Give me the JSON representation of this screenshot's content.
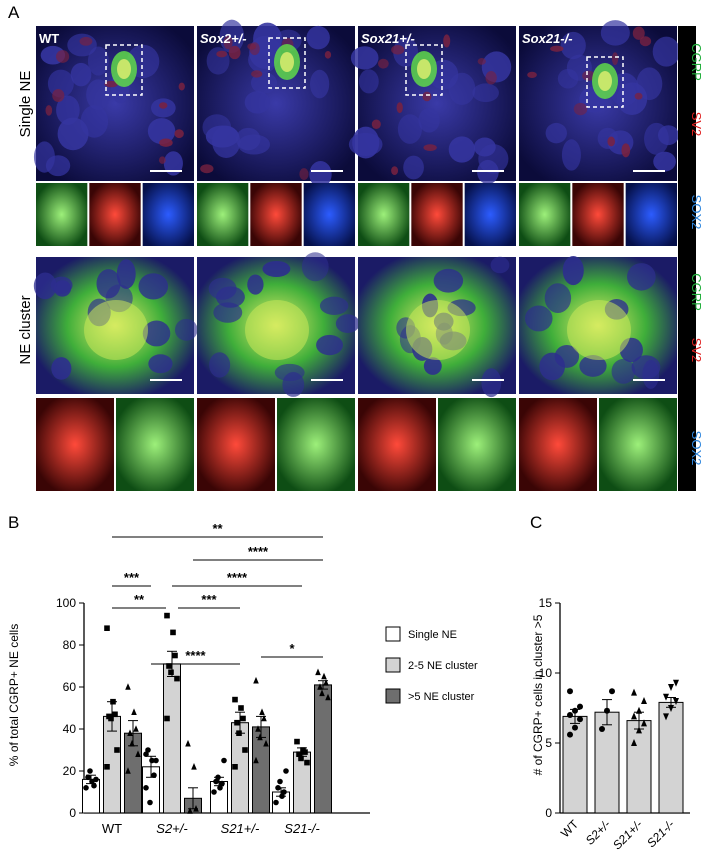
{
  "panels": {
    "a": "A",
    "b": "B",
    "c": "C"
  },
  "micrograph": {
    "conditions": [
      "WT",
      "Sox2+/-",
      "Sox21+/-",
      "Sox21-/-"
    ],
    "rows": [
      "Single NE",
      "NE cluster"
    ],
    "channels": [
      {
        "label": "CGRP",
        "color": "#1fae3a"
      },
      {
        "label": "SV2",
        "color": "#e02020"
      },
      {
        "label": "SOX2",
        "color": "#2e86de"
      }
    ]
  },
  "legend": [
    "Single NE",
    "2-5 NE cluster",
    ">5 NE cluster"
  ],
  "chart_data": [
    {
      "type": "bar",
      "categories": [
        "WT",
        "S2+/-",
        "S21+/-",
        "S21-/-"
      ],
      "ylabel": "% of total CGRP+ NE cells",
      "ylim": [
        0,
        100
      ],
      "yticks": [
        0,
        20,
        40,
        60,
        80,
        100
      ],
      "legend_position": "right",
      "series": [
        {
          "name": "Single NE",
          "color": "#ffffff",
          "marker": "circle",
          "values": [
            16,
            22,
            15,
            10
          ],
          "sem": [
            2,
            5,
            2,
            2
          ],
          "points": [
            [
              12,
              15,
              13,
              17,
              20,
              16
            ],
            [
              12,
              25,
              18,
              30,
              5,
              25,
              28
            ],
            [
              10,
              12,
              14,
              15,
              17,
              25
            ],
            [
              5,
              8,
              10,
              12,
              15,
              20
            ]
          ]
        },
        {
          "name": "2-5 NE cluster",
          "color": "#d3d3d3",
          "marker": "square",
          "values": [
            46,
            71,
            43,
            29
          ],
          "sem": [
            7,
            6,
            5,
            2
          ],
          "points": [
            [
              88,
              53,
              47,
              46,
              45,
              30,
              22
            ],
            [
              94,
              86,
              75,
              70,
              67,
              64,
              45
            ],
            [
              54,
              50,
              45,
              43,
              38,
              30,
              22
            ],
            [
              34,
              30,
              29,
              28,
              26,
              24
            ]
          ]
        },
        {
          "name": ">5 NE cluster",
          "color": "#6e6e6e",
          "marker": "triangle",
          "values": [
            38,
            7,
            41,
            61
          ],
          "sem": [
            6,
            5,
            5,
            2
          ],
          "points": [
            [
              60,
              48,
              40,
              38,
              33,
              28,
              20
            ],
            [
              33,
              22,
              2,
              1
            ],
            [
              63,
              48,
              45,
              40,
              36,
              33,
              25
            ],
            [
              67,
              65,
              62,
              60,
              57,
              55
            ]
          ]
        }
      ],
      "significance": [
        {
          "label": "**"
        },
        {
          "label": "****"
        },
        {
          "label": "***"
        },
        {
          "label": "****"
        },
        {
          "label": "**"
        },
        {
          "label": "***"
        },
        {
          "label": "****"
        },
        {
          "label": "*"
        }
      ]
    },
    {
      "type": "bar",
      "categories": [
        "WT",
        "S2+/-",
        "S21+/-",
        "S21-/-"
      ],
      "ylabel": "# of CGRP+ cells in cluster >5",
      "ylim": [
        0,
        15
      ],
      "yticks": [
        0,
        5,
        10,
        15
      ],
      "values": [
        6.9,
        7.2,
        6.6,
        7.9
      ],
      "sem": [
        0.5,
        0.9,
        0.6,
        0.35
      ],
      "markers": [
        "circle",
        "circle",
        "triangle",
        "triangle-down"
      ],
      "points": [
        [
          5.6,
          6.1,
          6.7,
          7.0,
          7.3,
          7.6,
          8.7
        ],
        [
          6.0,
          7.3,
          8.7
        ],
        [
          5.0,
          5.9,
          6.4,
          6.9,
          7.3,
          8.0,
          8.6
        ],
        [
          6.9,
          7.5,
          8.0,
          8.3,
          9.0,
          9.3
        ]
      ]
    }
  ]
}
